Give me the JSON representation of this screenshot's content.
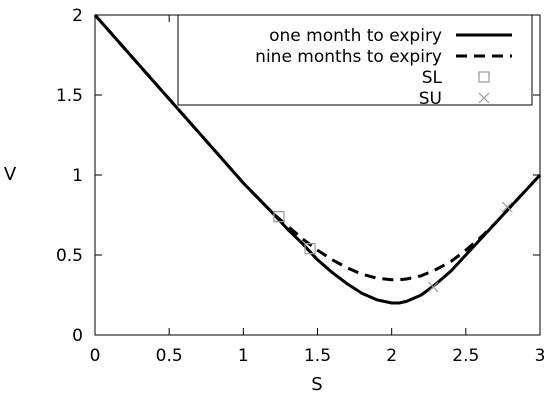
{
  "chart_data": {
    "type": "line",
    "title": "",
    "xlabel": "S",
    "ylabel": "V",
    "xlim": [
      0,
      3
    ],
    "ylim": [
      0,
      2
    ],
    "x_ticks": [
      0,
      0.5,
      1,
      1.5,
      2,
      2.5,
      3
    ],
    "x_tick_labels": [
      "0",
      "0.5",
      "1",
      "1.5",
      "2",
      "2.5",
      "3"
    ],
    "y_ticks": [
      0,
      0.5,
      1,
      1.5,
      2
    ],
    "y_tick_labels": [
      "0",
      "0.5",
      "1",
      "1.5",
      "2"
    ],
    "grid": false,
    "legend_position": "top-right",
    "series": [
      {
        "name": "one month to expiry",
        "style": "solid",
        "color": "#000000",
        "x": [
          0,
          0.2,
          0.4,
          0.6,
          0.8,
          1.0,
          1.2,
          1.3,
          1.4,
          1.5,
          1.6,
          1.7,
          1.8,
          1.9,
          2.0,
          2.05,
          2.1,
          2.2,
          2.3,
          2.4,
          2.5,
          2.6,
          2.7,
          2.8,
          2.9,
          3.0
        ],
        "y": [
          2.0,
          1.79,
          1.58,
          1.37,
          1.16,
          0.95,
          0.76,
          0.66,
          0.57,
          0.47,
          0.39,
          0.32,
          0.26,
          0.22,
          0.2,
          0.2,
          0.21,
          0.25,
          0.32,
          0.4,
          0.5,
          0.6,
          0.7,
          0.8,
          0.9,
          1.0
        ]
      },
      {
        "name": "nine months to expiry",
        "style": "dashed",
        "color": "#000000",
        "x": [
          0,
          0.2,
          0.4,
          0.6,
          0.8,
          1.0,
          1.2,
          1.3,
          1.4,
          1.5,
          1.6,
          1.7,
          1.8,
          1.9,
          2.0,
          2.05,
          2.1,
          2.2,
          2.3,
          2.4,
          2.5,
          2.6,
          2.7,
          2.8,
          2.9,
          3.0
        ],
        "y": [
          2.0,
          1.79,
          1.58,
          1.37,
          1.16,
          0.95,
          0.76,
          0.68,
          0.6,
          0.53,
          0.47,
          0.42,
          0.38,
          0.355,
          0.345,
          0.345,
          0.35,
          0.37,
          0.41,
          0.46,
          0.53,
          0.61,
          0.7,
          0.8,
          0.9,
          1.0
        ]
      }
    ],
    "markers": [
      {
        "name": "SL",
        "symbol": "square",
        "color": "#999999",
        "points": [
          [
            1.24,
            0.74
          ],
          [
            1.45,
            0.54
          ]
        ]
      },
      {
        "name": "SU",
        "symbol": "cross",
        "color": "#999999",
        "points": [
          [
            2.28,
            0.3
          ],
          [
            2.78,
            0.8
          ]
        ]
      }
    ]
  }
}
